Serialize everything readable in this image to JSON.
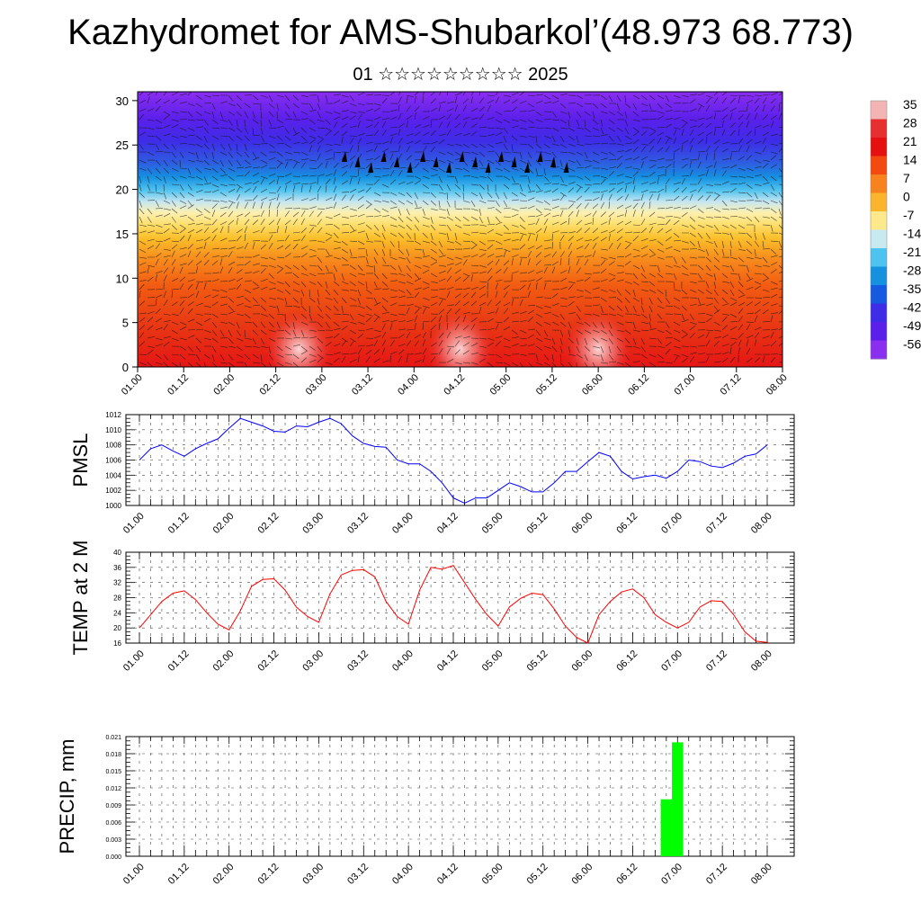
{
  "title": "Kazhydromet for AMS-Shubarkol’(48.973 68.773)",
  "subtitle": "01 ☆☆☆☆☆☆☆☆☆ 2025",
  "chart_data": [
    {
      "type": "heatmap",
      "name": "",
      "ylim": [
        0,
        31
      ],
      "yticks": [
        0,
        5,
        10,
        15,
        20,
        25,
        30
      ],
      "x_tick_labels": [
        "01.00",
        "01.12",
        "02.00",
        "02.12",
        "03.00",
        "03.12",
        "04.00",
        "04.12",
        "05.00",
        "05.12",
        "06.00",
        "06.12",
        "07.00",
        "07.12",
        "08.00"
      ],
      "colorbar_labels": [
        "35",
        "28",
        "21",
        "14",
        "7",
        "0",
        "-7",
        "-14",
        "-21",
        "-28",
        "-35",
        "-42",
        "-49",
        "-56"
      ],
      "colorbar_colors": [
        "#f3b4b4",
        "#e63030",
        "#e51010",
        "#f24a10",
        "#f7831e",
        "#fbb52c",
        "#fde98c",
        "#c7e9f0",
        "#4dc4ef",
        "#1591e0",
        "#155ae0",
        "#3e2ce6",
        "#5a20ea",
        "#8a2ef0"
      ],
      "surface_hotspots": [
        {
          "x_index": 14,
          "y": 2,
          "value": 30
        },
        {
          "x_index": 28,
          "y": 2,
          "value": 35
        },
        {
          "x_index": 40,
          "y": 2,
          "value": 35
        }
      ],
      "annotation": "wind barbs overlay"
    },
    {
      "type": "line",
      "ylabel": "PMSL",
      "ylim": [
        1000,
        1012
      ],
      "yticks": [
        1000,
        1002,
        1004,
        1006,
        1008,
        1010,
        1012
      ],
      "color": "#0000ff",
      "x_tick_labels": [
        "01.00",
        "01.12",
        "02.00",
        "02.12",
        "03.00",
        "03.12",
        "04.00",
        "04.12",
        "05.00",
        "05.12",
        "06.00",
        "06.12",
        "07.00",
        "07.12",
        "08.00"
      ],
      "values": [
        1006.0,
        1007.5,
        1008.0,
        1007.2,
        1006.5,
        1007.5,
        1008.2,
        1008.8,
        1010.2,
        1011.5,
        1011.0,
        1010.5,
        1009.8,
        1009.7,
        1010.5,
        1010.4,
        1011.0,
        1011.5,
        1010.8,
        1009.2,
        1008.2,
        1007.8,
        1007.7,
        1006.0,
        1005.5,
        1005.5,
        1004.5,
        1003.0,
        1001.0,
        1000.3,
        1001.0,
        1001.0,
        1002.0,
        1003.0,
        1002.5,
        1001.8,
        1001.8,
        1003.0,
        1004.5,
        1004.5,
        1005.8,
        1007.0,
        1006.5,
        1004.5,
        1003.5,
        1003.8,
        1004.0,
        1003.6,
        1004.5,
        1006.0,
        1005.8,
        1005.2,
        1005.0,
        1005.6,
        1006.5,
        1006.8,
        1008.0
      ]
    },
    {
      "type": "line",
      "ylabel": "TEMP at 2 M",
      "ylim": [
        16,
        40
      ],
      "yticks": [
        16,
        20,
        24,
        28,
        32,
        36,
        40
      ],
      "color": "#ff0000",
      "x_tick_labels": [
        "01.00",
        "01.12",
        "02.00",
        "02.12",
        "03.00",
        "03.12",
        "04.00",
        "04.12",
        "05.00",
        "05.12",
        "06.00",
        "06.12",
        "07.00",
        "07.12",
        "08.00"
      ],
      "values": [
        20.0,
        23.5,
        27.0,
        29.2,
        29.8,
        27.5,
        24.0,
        21.0,
        19.5,
        24.5,
        31.0,
        32.8,
        33.0,
        30.0,
        25.5,
        23.0,
        21.5,
        29.0,
        34.0,
        35.2,
        35.4,
        33.5,
        27.0,
        23.0,
        21.0,
        30.0,
        36.0,
        35.5,
        36.5,
        32.0,
        27.5,
        23.5,
        20.5,
        25.5,
        27.8,
        29.2,
        28.8,
        25.0,
        20.5,
        17.5,
        16.0,
        23.5,
        27.0,
        29.5,
        30.3,
        28.0,
        23.5,
        21.5,
        20.0,
        21.5,
        25.5,
        27.2,
        27.0,
        23.5,
        19.0,
        16.5,
        16.2
      ]
    },
    {
      "type": "bar",
      "ylabel": "PRECIP, mm",
      "ylim": [
        0,
        0.021
      ],
      "yticks": [
        "0.000",
        "0.003",
        "0.006",
        "0.009",
        "0.012",
        "0.015",
        "0.018",
        "0.021"
      ],
      "color": "#00ff00",
      "x_tick_labels": [
        "01.00",
        "01.12",
        "02.00",
        "02.12",
        "03.00",
        "03.12",
        "04.00",
        "04.12",
        "05.00",
        "05.12",
        "06.00",
        "06.12",
        "07.00",
        "07.12",
        "08.00"
      ],
      "bars": [
        {
          "x_index": 47,
          "value": 0.01
        },
        {
          "x_index": 48,
          "value": 0.02
        }
      ]
    }
  ]
}
